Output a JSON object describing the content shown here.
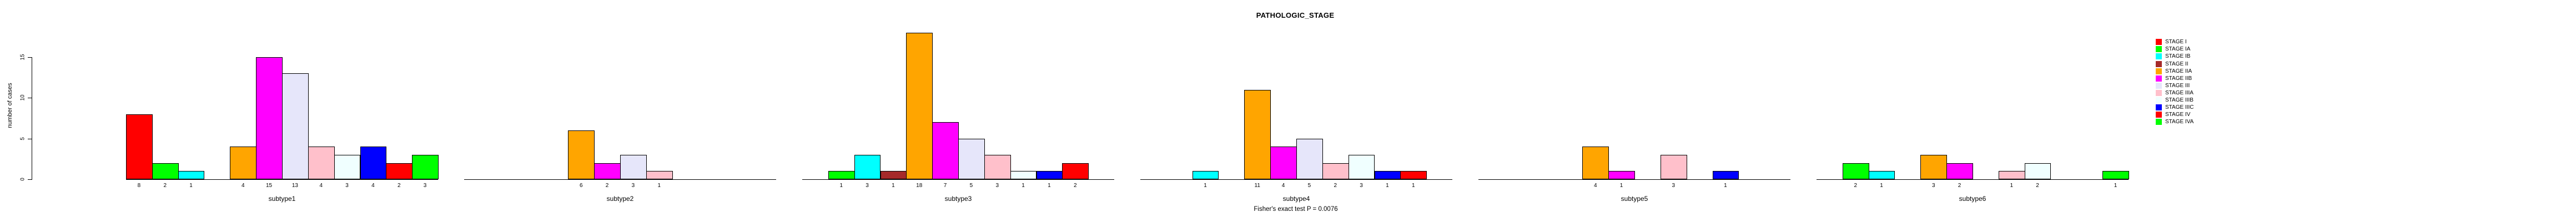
{
  "page": {
    "background": "#FFFFFF"
  },
  "chart_data": {
    "type": "bar",
    "title": "PATHOLOGIC_STAGE",
    "ylabel": "number of cases",
    "footer": "Fisher's exact test P = 0.0076",
    "yticks": [
      0,
      5,
      10,
      15
    ],
    "ylim": [
      0,
      15
    ],
    "grid": false,
    "bar_value_labels": true,
    "legend_position": "right",
    "categories": [
      "STAGE I",
      "STAGE IA",
      "STAGE IB",
      "STAGE II",
      "STAGE IIA",
      "STAGE IIB",
      "STAGE III",
      "STAGE IIIA",
      "STAGE IIIB",
      "STAGE IIIC",
      "STAGE IV",
      "STAGE IVA"
    ],
    "colors": [
      "#FF0000",
      "#00FF00",
      "#00FFFF",
      "#A52A2A",
      "#FFA500",
      "#FF00FF",
      "#E6E6FA",
      "#FFC0CB",
      "#F0FFFF",
      "#0000FF",
      "#FF0000",
      "#00FF00"
    ],
    "series": [
      {
        "name": "subtype1",
        "values": [
          8,
          2,
          1,
          0,
          4,
          15,
          13,
          4,
          3,
          4,
          2,
          3
        ]
      },
      {
        "name": "subtype2",
        "values": [
          0,
          0,
          0,
          0,
          6,
          2,
          3,
          1,
          0,
          0,
          0,
          0
        ]
      },
      {
        "name": "subtype3",
        "values": [
          0,
          1,
          3,
          1,
          18,
          7,
          5,
          3,
          1,
          1,
          2,
          0
        ]
      },
      {
        "name": "subtype4",
        "values": [
          0,
          0,
          1,
          0,
          11,
          4,
          5,
          2,
          3,
          1,
          1,
          0
        ]
      },
      {
        "name": "subtype5",
        "values": [
          0,
          0,
          0,
          0,
          4,
          1,
          0,
          3,
          0,
          1,
          0,
          0
        ]
      },
      {
        "name": "subtype6",
        "values": [
          0,
          2,
          1,
          0,
          3,
          2,
          0,
          1,
          2,
          0,
          0,
          1
        ]
      }
    ]
  }
}
